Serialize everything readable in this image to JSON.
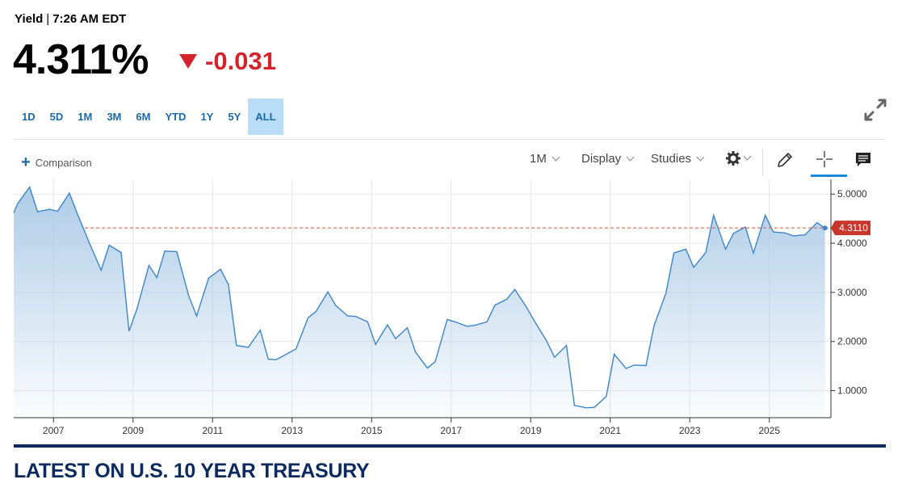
{
  "header": {
    "label": "Yield",
    "separator": "|",
    "time": "7:26 AM EDT"
  },
  "quote": {
    "price": "4.311%",
    "change": "-0.031",
    "change_color": "#d4232b"
  },
  "ranges": [
    "1D",
    "5D",
    "1M",
    "3M",
    "6M",
    "YTD",
    "1Y",
    "5Y",
    "ALL"
  ],
  "active_range": "ALL",
  "toolbar": {
    "comparison": "Comparison",
    "interval": "1M",
    "display": "Display",
    "studies": "Studies"
  },
  "section_title": "LATEST ON U.S. 10 YEAR TREASURY",
  "colors": {
    "line": "#3d85c6",
    "fill_top": "#a9c9e6",
    "ref_line": "#d9593b",
    "badge": "#c9372c",
    "accent": "#1a6aa8"
  },
  "chart_data": {
    "type": "area",
    "x_tick_labels": [
      "2007",
      "2009",
      "2011",
      "2013",
      "2015",
      "2017",
      "2019",
      "2021",
      "2023",
      "2025"
    ],
    "y_tick_labels": [
      "5.0000",
      "4.0000",
      "3.0000",
      "2.0000",
      "1.0000"
    ],
    "ylim": [
      0.45,
      5.3
    ],
    "xlim": [
      2006.0,
      2026.55
    ],
    "last_value_label": "4.3110",
    "reference_value": 4.311,
    "grid": true,
    "series": [
      {
        "x": [
          2006.0,
          2006.1,
          2006.4,
          2006.6,
          2006.9,
          2007.1,
          2007.4,
          2007.6,
          2007.9,
          2008.2,
          2008.4,
          2008.7,
          2008.9,
          2009.1,
          2009.4,
          2009.6,
          2009.8,
          2010.1,
          2010.4,
          2010.6,
          2010.9,
          2011.2,
          2011.4,
          2011.6,
          2011.9,
          2012.2,
          2012.4,
          2012.6,
          2012.9,
          2013.1,
          2013.4,
          2013.6,
          2013.9,
          2014.1,
          2014.4,
          2014.6,
          2014.9,
          2015.1,
          2015.4,
          2015.6,
          2015.9,
          2016.1,
          2016.4,
          2016.6,
          2016.9,
          2017.1,
          2017.4,
          2017.6,
          2017.9,
          2018.1,
          2018.4,
          2018.6,
          2018.9,
          2019.1,
          2019.4,
          2019.6,
          2019.9,
          2020.1,
          2020.4,
          2020.6,
          2020.9,
          2021.1,
          2021.4,
          2021.6,
          2021.9,
          2022.1,
          2022.4,
          2022.6,
          2022.9,
          2023.1,
          2023.4,
          2023.6,
          2023.9,
          2024.1,
          2024.4,
          2024.6,
          2024.9,
          2025.1,
          2025.4,
          2025.6,
          2025.9,
          2026.2,
          2026.4
        ],
        "values": [
          4.62,
          4.81,
          5.14,
          4.64,
          4.69,
          4.65,
          5.02,
          4.6,
          4.01,
          3.45,
          3.96,
          3.81,
          2.21,
          2.67,
          3.55,
          3.3,
          3.84,
          3.83,
          2.93,
          2.52,
          3.29,
          3.47,
          3.16,
          1.92,
          1.88,
          2.23,
          1.64,
          1.63,
          1.76,
          1.85,
          2.48,
          2.61,
          3.01,
          2.73,
          2.52,
          2.51,
          2.4,
          1.94,
          2.34,
          2.06,
          2.28,
          1.79,
          1.46,
          1.59,
          2.45,
          2.4,
          2.31,
          2.33,
          2.4,
          2.74,
          2.86,
          3.06,
          2.69,
          2.41,
          2.01,
          1.68,
          1.92,
          0.7,
          0.65,
          0.66,
          0.88,
          1.74,
          1.45,
          1.52,
          1.51,
          2.32,
          2.98,
          3.8,
          3.88,
          3.51,
          3.81,
          4.57,
          3.88,
          4.2,
          4.33,
          3.8,
          4.57,
          4.23,
          4.21,
          4.15,
          4.17,
          4.42,
          4.31
        ]
      }
    ]
  }
}
